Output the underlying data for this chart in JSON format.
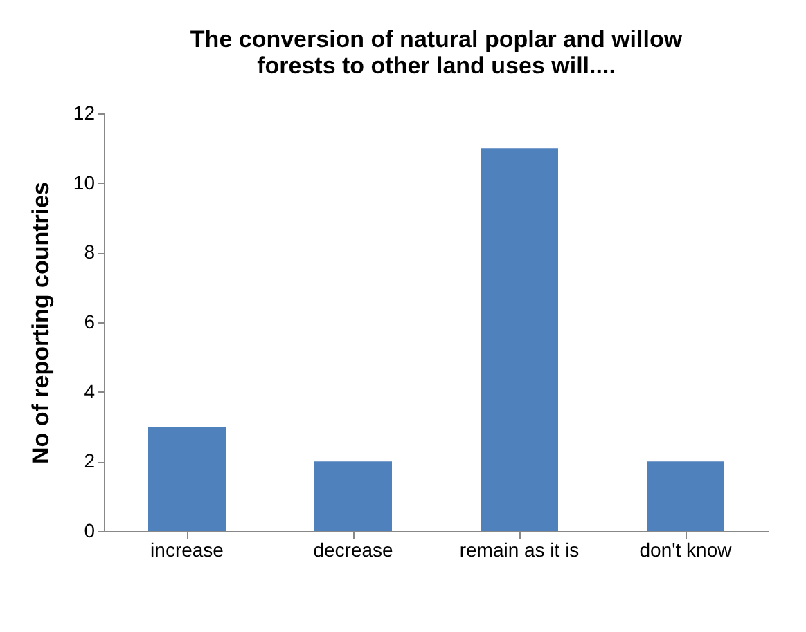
{
  "chart_data": {
    "type": "bar",
    "title": "The conversion of natural poplar and willow forests to other land uses will....",
    "ylabel": "No of reporting countries",
    "categories": [
      "increase",
      "decrease",
      "remain as it is",
      "don't know"
    ],
    "values": [
      3,
      2,
      11,
      2
    ],
    "color": "#4f81bd",
    "ylim": [
      0,
      12
    ],
    "yticks": [
      0,
      2,
      4,
      6,
      8,
      10,
      12
    ],
    "grid": false
  }
}
